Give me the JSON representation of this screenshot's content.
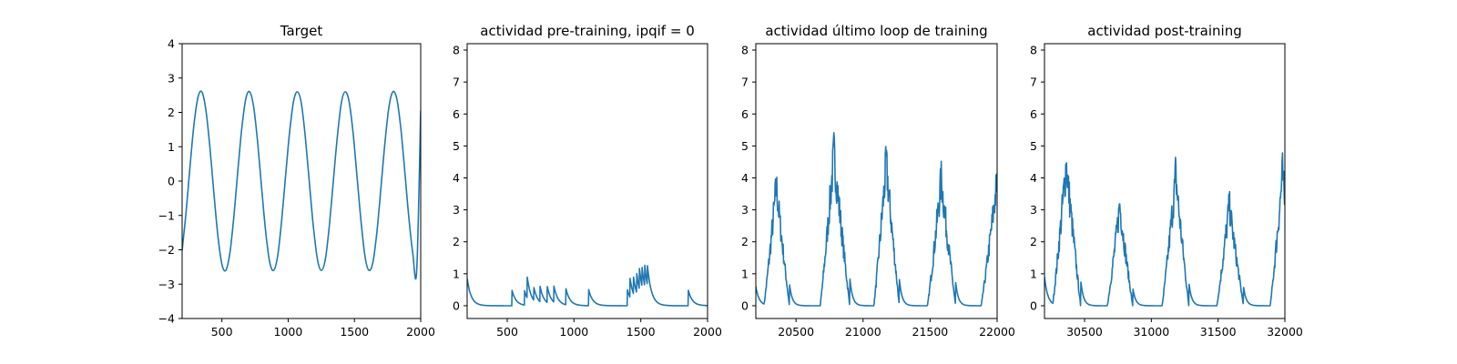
{
  "colors": {
    "series": "#1f77b4",
    "axes": "#000000",
    "background": "#ffffff"
  },
  "chart_data": [
    {
      "type": "line",
      "title": "Target",
      "xlabel": "",
      "ylabel": "",
      "xlim": [
        200,
        2000
      ],
      "ylim": [
        -4,
        4
      ],
      "xticks": [
        500,
        1000,
        1500,
        2000
      ],
      "yticks": [
        -4,
        -3,
        -2,
        -1,
        0,
        1,
        2,
        3,
        4
      ],
      "ytick_labels": [
        "−4",
        "−3",
        "−2",
        "−1",
        "0",
        "1",
        "2",
        "3",
        "4"
      ],
      "grid": false,
      "series": [
        {
          "x": [
            200,
            230,
            260,
            290,
            320,
            350,
            380,
            410,
            440,
            470,
            500,
            530,
            560,
            590,
            620,
            650,
            680,
            710,
            740,
            770,
            800,
            830,
            860,
            890,
            920,
            950,
            980,
            1010,
            1040,
            1070,
            1100,
            1130,
            1160,
            1190,
            1220,
            1250,
            1280,
            1310,
            1340,
            1370,
            1400,
            1430,
            1460,
            1490,
            1520,
            1550,
            1580,
            1610,
            1640,
            1670,
            1700,
            1730,
            1760,
            1790,
            1820,
            1850,
            1880,
            1910,
            1940,
            1970,
            2000
          ],
          "y": [
            -2.02,
            -0.89,
            0.44,
            1.67,
            2.45,
            2.59,
            2.05,
            0.96,
            -0.36,
            -1.6,
            -2.42,
            -2.6,
            -2.1,
            -1.04,
            0.28,
            1.53,
            2.39,
            2.6,
            2.15,
            1.11,
            -0.2,
            -1.46,
            -2.35,
            -2.6,
            -2.2,
            -1.18,
            0.12,
            1.39,
            2.31,
            2.6,
            2.25,
            1.25,
            -0.04,
            -1.32,
            -2.26,
            -2.6,
            -2.29,
            -1.32,
            -0.04,
            1.25,
            2.25,
            2.6,
            2.31,
            1.39,
            0.12,
            -1.18,
            -2.2,
            -2.6,
            -2.35,
            -1.46,
            -0.2,
            1.11,
            2.15,
            2.6,
            2.39,
            1.53,
            0.28,
            -1.04,
            -2.1,
            -2.6,
            2.05
          ]
        }
      ]
    },
    {
      "type": "line",
      "title": "actividad pre-training, ipqif = 0",
      "xlabel": "",
      "ylabel": "",
      "xlim": [
        200,
        2000
      ],
      "ylim": [
        -0.4,
        8.2
      ],
      "xticks": [
        500,
        1000,
        1500,
        2000
      ],
      "yticks": [
        0,
        1,
        2,
        3,
        4,
        5,
        6,
        7,
        8
      ],
      "grid": false,
      "series": [
        {
          "baseline": 0.0,
          "decay": 30,
          "start": [
            200,
            0.85
          ],
          "spikes": [
            [
              535,
              0.5
            ],
            [
              630,
              0.45
            ],
            [
              650,
              0.65
            ],
            [
              700,
              0.4
            ],
            [
              745,
              0.5
            ],
            [
              800,
              0.5
            ],
            [
              850,
              0.5
            ],
            [
              940,
              0.5
            ],
            [
              1110,
              0.5
            ],
            [
              1400,
              0.5
            ],
            [
              1420,
              0.6
            ],
            [
              1445,
              0.55
            ],
            [
              1470,
              0.6
            ],
            [
              1490,
              0.65
            ],
            [
              1510,
              0.6
            ],
            [
              1530,
              0.65
            ],
            [
              1550,
              0.6
            ],
            [
              1855,
              0.5
            ]
          ]
        }
      ]
    },
    {
      "type": "line",
      "title": "actividad último loop de training",
      "xlabel": "",
      "ylabel": "",
      "xlim": [
        20200,
        22000
      ],
      "ylim": [
        -0.4,
        8.2
      ],
      "xticks": [
        20500,
        21000,
        21500,
        22000
      ],
      "yticks": [
        0,
        1,
        2,
        3,
        4,
        5,
        6,
        7,
        8
      ],
      "grid": false,
      "series": [
        {
          "baseline": 0.0,
          "decay": 25,
          "start": [
            20200,
            0.6
          ],
          "bumps": [
            [
              20260,
              20350,
              20450,
              3.6
            ],
            [
              20680,
              20780,
              20900,
              4.6
            ],
            [
              21080,
              21170,
              21270,
              4.3
            ],
            [
              21480,
              21580,
              21690,
              3.8
            ],
            [
              21880,
              22000,
              22060,
              3.9
            ]
          ]
        }
      ]
    },
    {
      "type": "line",
      "title": "actividad post-training",
      "xlabel": "",
      "ylabel": "",
      "xlim": [
        30200,
        32000
      ],
      "ylim": [
        -0.4,
        8.2
      ],
      "xticks": [
        30500,
        31000,
        31500,
        32000
      ],
      "yticks": [
        0,
        1,
        2,
        3,
        4,
        5,
        6,
        7,
        8
      ],
      "grid": false,
      "series": [
        {
          "baseline": 0.0,
          "decay": 25,
          "start": [
            30200,
            0.9
          ],
          "bumps": [
            [
              30260,
              30360,
              30470,
              4.3
            ],
            [
              30670,
              30760,
              30860,
              3.0
            ],
            [
              31080,
              31180,
              31280,
              3.9
            ],
            [
              31490,
              31580,
              31690,
              3.0
            ],
            [
              31890,
              31980,
              32060,
              4.0
            ]
          ]
        }
      ]
    }
  ]
}
